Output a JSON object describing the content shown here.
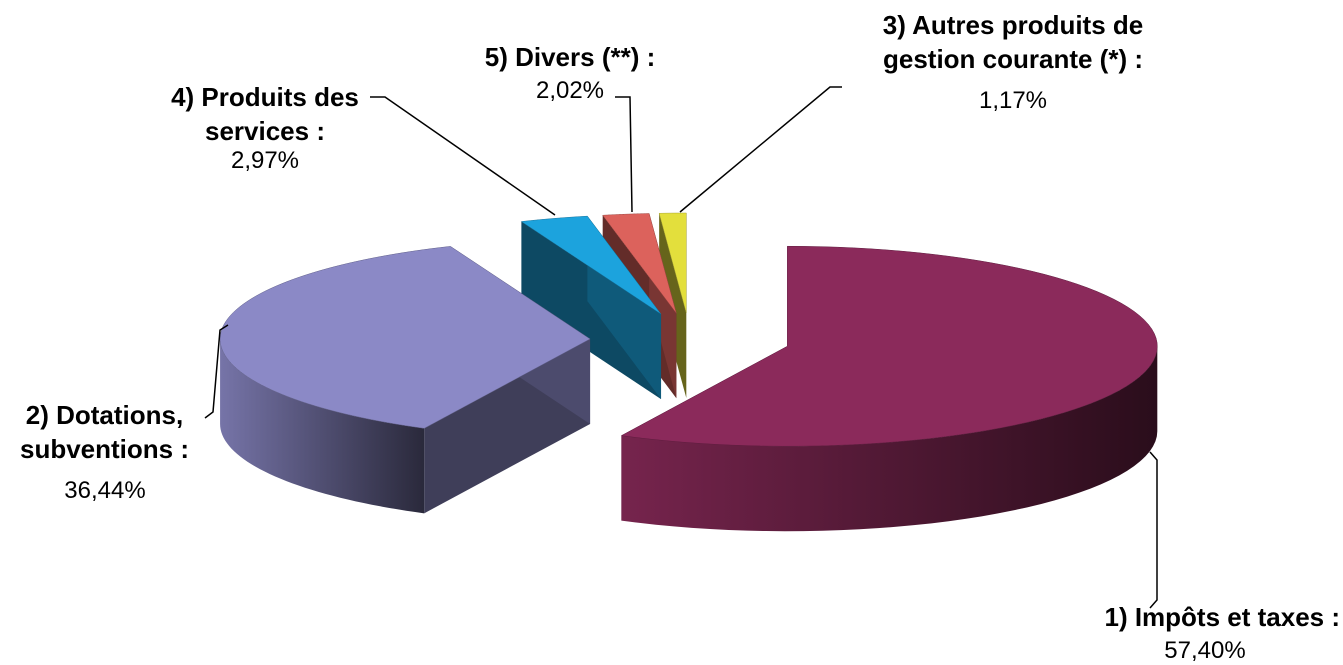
{
  "chart_data": {
    "type": "pie",
    "categories": [
      "1) Impôts et taxes :",
      "2) Dotations, subventions :",
      "4) Produits des services :",
      "5) Divers (**) :",
      "3) Autres produits de gestion courante (*) :"
    ],
    "values": [
      57.4,
      36.44,
      2.97,
      2.02,
      1.17
    ],
    "value_labels": [
      "57,40%",
      "36,44%",
      "2,97%",
      "2,02%",
      "1,17%"
    ],
    "colors": [
      "#8b2a5b",
      "#8b89c6",
      "#1ca3dd",
      "#dc625c",
      "#e3df3c"
    ]
  }
}
